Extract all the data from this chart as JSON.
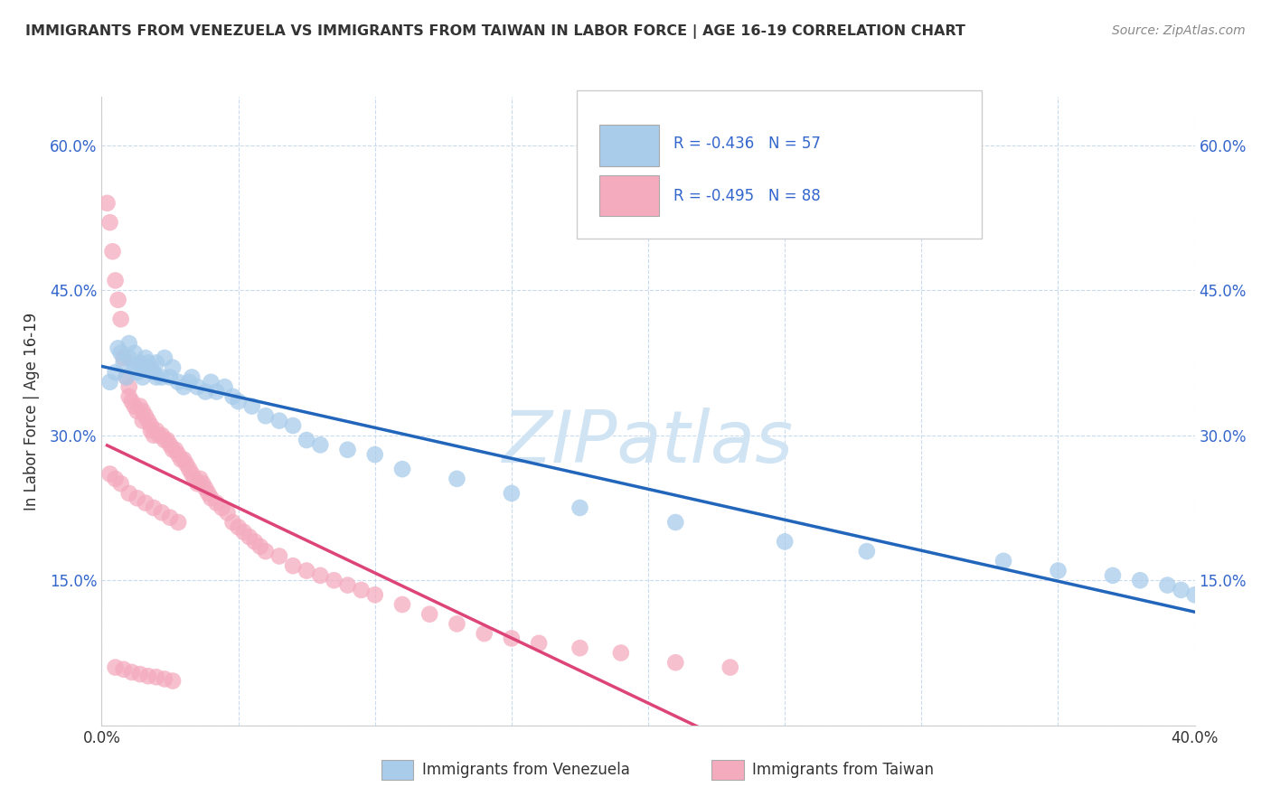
{
  "title": "IMMIGRANTS FROM VENEZUELA VS IMMIGRANTS FROM TAIWAN IN LABOR FORCE | AGE 16-19 CORRELATION CHART",
  "source": "Source: ZipAtlas.com",
  "ylabel": "In Labor Force | Age 16-19",
  "xlim": [
    0.0,
    0.4
  ],
  "ylim": [
    0.0,
    0.65
  ],
  "color_venezuela": "#A8CCEA",
  "color_taiwan": "#F4ABBE",
  "line_color_venezuela": "#2266BB",
  "line_color_taiwan": "#DD4477",
  "dash_color": "#BBBBBB",
  "watermark": "ZIPatlas",
  "watermark_color": "#D0E4F4",
  "legend_text_color": "#3366CC",
  "legend_label_color": "#333333",
  "venezuela_x": [
    0.003,
    0.005,
    0.006,
    0.007,
    0.008,
    0.009,
    0.01,
    0.01,
    0.012,
    0.012,
    0.013,
    0.014,
    0.015,
    0.015,
    0.016,
    0.017,
    0.018,
    0.019,
    0.02,
    0.02,
    0.022,
    0.023,
    0.025,
    0.026,
    0.028,
    0.03,
    0.032,
    0.033,
    0.035,
    0.038,
    0.04,
    0.042,
    0.045,
    0.048,
    0.05,
    0.055,
    0.06,
    0.065,
    0.07,
    0.075,
    0.08,
    0.09,
    0.1,
    0.11,
    0.13,
    0.15,
    0.175,
    0.21,
    0.25,
    0.28,
    0.33,
    0.35,
    0.37,
    0.38,
    0.39,
    0.395,
    0.4
  ],
  "venezuela_y": [
    0.355,
    0.365,
    0.39,
    0.385,
    0.375,
    0.36,
    0.38,
    0.395,
    0.37,
    0.385,
    0.365,
    0.375,
    0.37,
    0.36,
    0.38,
    0.375,
    0.37,
    0.365,
    0.375,
    0.36,
    0.36,
    0.38,
    0.36,
    0.37,
    0.355,
    0.35,
    0.355,
    0.36,
    0.35,
    0.345,
    0.355,
    0.345,
    0.35,
    0.34,
    0.335,
    0.33,
    0.32,
    0.315,
    0.31,
    0.295,
    0.29,
    0.285,
    0.28,
    0.265,
    0.255,
    0.24,
    0.225,
    0.21,
    0.19,
    0.18,
    0.17,
    0.16,
    0.155,
    0.15,
    0.145,
    0.14,
    0.135
  ],
  "taiwan_x": [
    0.002,
    0.003,
    0.004,
    0.005,
    0.006,
    0.007,
    0.008,
    0.009,
    0.01,
    0.01,
    0.011,
    0.012,
    0.013,
    0.014,
    0.015,
    0.015,
    0.016,
    0.017,
    0.018,
    0.018,
    0.019,
    0.02,
    0.021,
    0.022,
    0.023,
    0.024,
    0.025,
    0.026,
    0.027,
    0.028,
    0.029,
    0.03,
    0.031,
    0.032,
    0.033,
    0.034,
    0.035,
    0.036,
    0.037,
    0.038,
    0.039,
    0.04,
    0.042,
    0.044,
    0.046,
    0.048,
    0.05,
    0.052,
    0.054,
    0.056,
    0.058,
    0.06,
    0.065,
    0.07,
    0.075,
    0.08,
    0.085,
    0.09,
    0.095,
    0.1,
    0.11,
    0.12,
    0.13,
    0.14,
    0.15,
    0.16,
    0.175,
    0.19,
    0.21,
    0.23,
    0.003,
    0.005,
    0.007,
    0.01,
    0.013,
    0.016,
    0.019,
    0.022,
    0.025,
    0.028,
    0.005,
    0.008,
    0.011,
    0.014,
    0.017,
    0.02,
    0.023,
    0.026
  ],
  "taiwan_y": [
    0.54,
    0.52,
    0.49,
    0.46,
    0.44,
    0.42,
    0.38,
    0.36,
    0.35,
    0.34,
    0.335,
    0.33,
    0.325,
    0.33,
    0.325,
    0.315,
    0.32,
    0.315,
    0.31,
    0.305,
    0.3,
    0.305,
    0.3,
    0.3,
    0.295,
    0.295,
    0.29,
    0.285,
    0.285,
    0.28,
    0.275,
    0.275,
    0.27,
    0.265,
    0.26,
    0.255,
    0.25,
    0.255,
    0.25,
    0.245,
    0.24,
    0.235,
    0.23,
    0.225,
    0.22,
    0.21,
    0.205,
    0.2,
    0.195,
    0.19,
    0.185,
    0.18,
    0.175,
    0.165,
    0.16,
    0.155,
    0.15,
    0.145,
    0.14,
    0.135,
    0.125,
    0.115,
    0.105,
    0.095,
    0.09,
    0.085,
    0.08,
    0.075,
    0.065,
    0.06,
    0.26,
    0.255,
    0.25,
    0.24,
    0.235,
    0.23,
    0.225,
    0.22,
    0.215,
    0.21,
    0.06,
    0.058,
    0.055,
    0.053,
    0.051,
    0.05,
    0.048,
    0.046
  ]
}
